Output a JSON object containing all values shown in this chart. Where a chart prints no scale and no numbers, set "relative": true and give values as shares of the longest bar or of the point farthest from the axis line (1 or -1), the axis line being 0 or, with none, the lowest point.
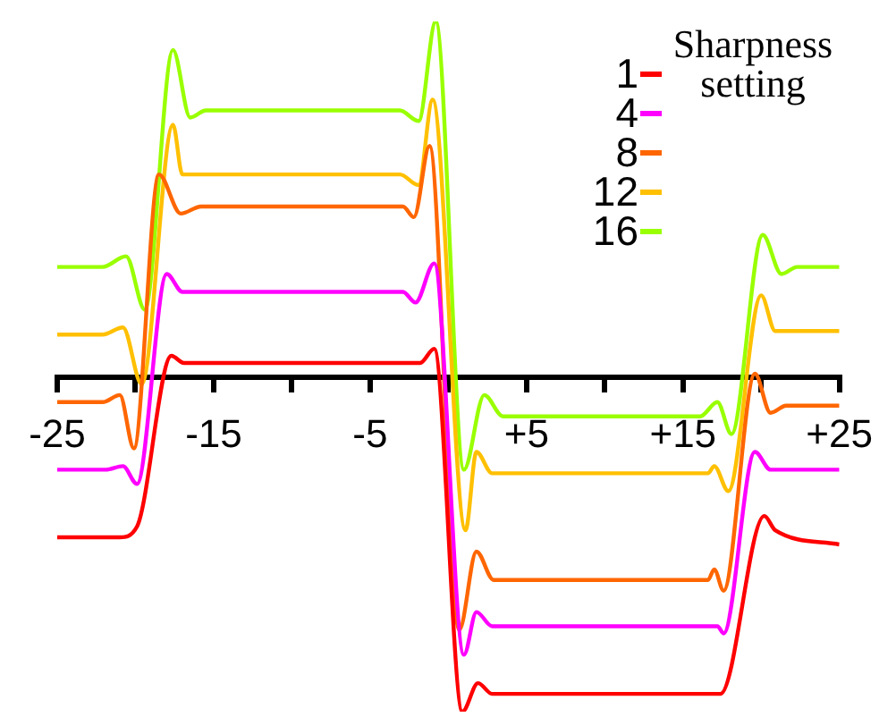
{
  "chart_data": {
    "type": "line",
    "relative": true,
    "legend_title": "Sharpness setting",
    "legend": "top right",
    "grid": false,
    "marker": "none",
    "line_style": "solid",
    "xlim": [
      -25,
      25
    ],
    "xticks": [
      -25,
      {
        "value": -20,
        "label": null
      },
      {
        "value": -15,
        "label": "-15"
      },
      {
        "value": -10,
        "label": null
      },
      {
        "value": -5,
        "label": "-5"
      },
      {
        "value": 0,
        "label": null
      },
      {
        "value": 5,
        "label": "+5"
      },
      {
        "value": 10,
        "label": null
      },
      {
        "value": 15,
        "label": "+15"
      },
      {
        "value": 20,
        "label": null
      },
      {
        "value": 25,
        "label": "+25"
      }
    ],
    "series": [
      {
        "name": "1",
        "color": "#ff0000",
        "x": [
          -25,
          -21.0,
          -19.9,
          -17.7,
          -16.9,
          -1.8,
          -0.9,
          0.9,
          1.9,
          2.8,
          17.4,
          20.2,
          20.9,
          25
        ],
        "values": [
          -0.45,
          -0.45,
          -0.42,
          0.06,
          0.04,
          0.04,
          0.08,
          -0.94,
          -0.86,
          -0.89,
          -0.89,
          -0.39,
          -0.43,
          -0.47
        ]
      },
      {
        "name": "4",
        "color": "#ff00ff",
        "x": [
          -25,
          -21.9,
          -20.8,
          -19.9,
          -18.0,
          -17.0,
          -2.9,
          -2.1,
          -0.9,
          1.0,
          1.8,
          2.8,
          17.2,
          17.6,
          19.6,
          20.6,
          25
        ],
        "values": [
          -0.26,
          -0.26,
          -0.25,
          -0.3,
          0.29,
          0.24,
          0.24,
          0.21,
          0.32,
          -0.78,
          -0.66,
          -0.7,
          -0.7,
          -0.72,
          -0.21,
          -0.26,
          -0.26
        ]
      },
      {
        "name": "8",
        "color": "#ff6600",
        "x": [
          -25,
          -22.1,
          -21.0,
          -20.1,
          -18.5,
          -17.1,
          -15.8,
          -2.9,
          -2.2,
          -1.2,
          0.7,
          1.8,
          2.9,
          16.6,
          17.0,
          17.6,
          19.6,
          20.6,
          21.6,
          25
        ],
        "values": [
          -0.07,
          -0.07,
          -0.05,
          -0.2,
          0.57,
          0.46,
          0.48,
          0.48,
          0.45,
          0.65,
          -0.71,
          -0.49,
          -0.57,
          -0.57,
          -0.54,
          -0.6,
          0.01,
          -0.1,
          -0.08,
          -0.08
        ]
      },
      {
        "name": "12",
        "color": "#ffc000",
        "x": [
          -25,
          -22.1,
          -20.8,
          -19.6,
          -17.6,
          -17.0,
          -3.1,
          -1.9,
          -1.0,
          1.1,
          1.8,
          2.8,
          16.6,
          17.0,
          17.9,
          20.0,
          20.9,
          25
        ],
        "values": [
          0.12,
          0.12,
          0.14,
          -0.02,
          0.71,
          0.57,
          0.57,
          0.54,
          0.78,
          -0.43,
          -0.21,
          -0.27,
          -0.27,
          -0.25,
          -0.32,
          0.23,
          0.13,
          0.13
        ]
      },
      {
        "name": "16",
        "color": "#99ff00",
        "x": [
          -25,
          -22.1,
          -20.6,
          -19.4,
          -17.6,
          -16.5,
          -15.5,
          -3.1,
          -1.9,
          -0.8,
          1.0,
          2.3,
          3.5,
          16.1,
          17.2,
          18.1,
          20.1,
          21.3,
          22.3,
          25
        ],
        "values": [
          0.31,
          0.31,
          0.34,
          0.19,
          0.92,
          0.73,
          0.75,
          0.75,
          0.72,
          1.0,
          -0.26,
          -0.05,
          -0.11,
          -0.11,
          -0.07,
          -0.16,
          0.4,
          0.29,
          0.31,
          0.31
        ]
      }
    ]
  }
}
